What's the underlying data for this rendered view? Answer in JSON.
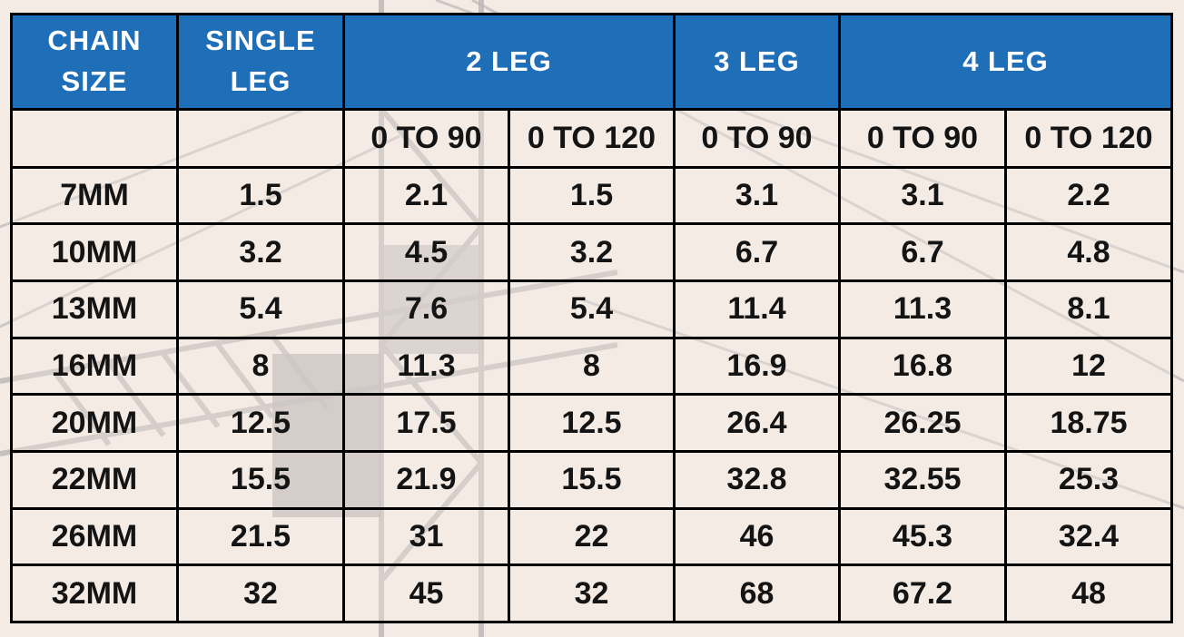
{
  "table": {
    "headers": {
      "chain_size": [
        "CHAIN",
        "SIZE"
      ],
      "single_leg": [
        "SINGLE",
        "LEG"
      ],
      "two_leg": "2 LEG",
      "three_leg": "3 LEG",
      "four_leg": "4 LEG"
    },
    "subheaders": [
      "",
      "",
      "0 TO 90",
      "0 TO 120",
      "0 TO 90",
      "0 TO 90",
      "0 TO 120"
    ],
    "rows": [
      [
        "7MM",
        "1.5",
        "2.1",
        "1.5",
        "3.1",
        "3.1",
        "2.2"
      ],
      [
        "10MM",
        "3.2",
        "4.5",
        "3.2",
        "6.7",
        "6.7",
        "4.8"
      ],
      [
        "13MM",
        "5.4",
        "7.6",
        "5.4",
        "11.4",
        "11.3",
        "8.1"
      ],
      [
        "16MM",
        "8",
        "11.3",
        "8",
        "16.9",
        "16.8",
        "12"
      ],
      [
        "20MM",
        "12.5",
        "17.5",
        "12.5",
        "26.4",
        "26.25",
        "18.75"
      ],
      [
        "22MM",
        "15.5",
        "21.9",
        "15.5",
        "32.8",
        "32.55",
        "25.3"
      ],
      [
        "26MM",
        "21.5",
        "31",
        "22",
        "46",
        "45.3",
        "32.4"
      ],
      [
        "32MM",
        "32",
        "45",
        "32",
        "68",
        "67.2",
        "48"
      ]
    ]
  },
  "colors": {
    "header_bg": "#1f6fb8",
    "header_text": "#ffffff",
    "body_text": "#141414",
    "page_bg": "#f4ebe4",
    "border": "#000000"
  },
  "background_image": "crane-silhouette"
}
